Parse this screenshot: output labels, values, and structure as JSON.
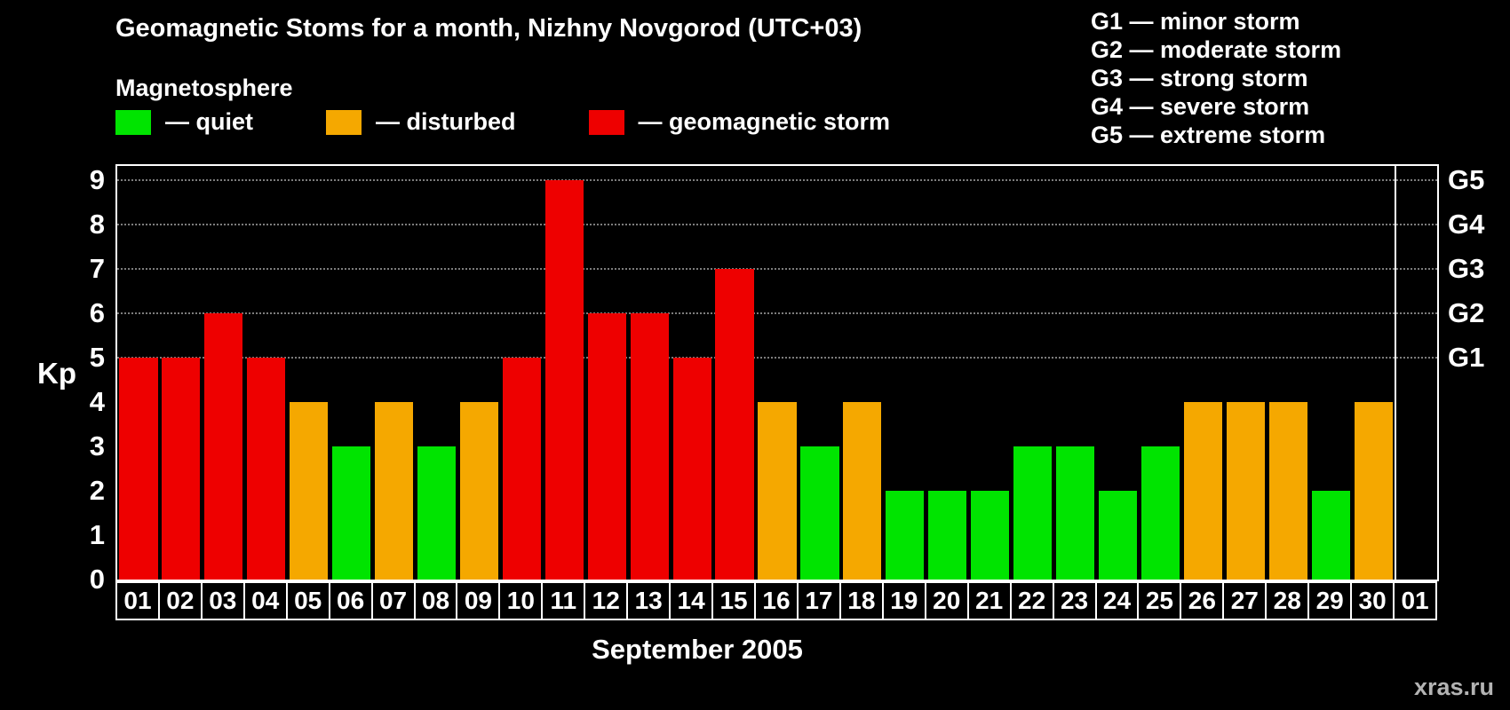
{
  "title": "Geomagnetic Stoms for a month, Nizhny Novgorod (UTC+03)",
  "legend": {
    "heading": "Magnetosphere",
    "items": [
      {
        "label": "— quiet",
        "color": "#00e400"
      },
      {
        "label": "— disturbed",
        "color": "#f5a800"
      },
      {
        "label": "— geomagnetic storm",
        "color": "#ee0000"
      }
    ]
  },
  "g_legend": [
    "G1 — minor storm",
    "G2 — moderate storm",
    "G3 — strong storm",
    "G4 — severe storm",
    "G5 — extreme storm"
  ],
  "month_label": "September 2005",
  "watermark": "xras.ru",
  "chart_data": {
    "type": "bar",
    "title": "Geomagnetic Stoms for a month, Nizhny Novgorod (UTC+03)",
    "xlabel": "September 2005",
    "ylabel": "Kp",
    "ylim": [
      0,
      9
    ],
    "y_ticks": [
      0,
      1,
      2,
      3,
      4,
      5,
      6,
      7,
      8,
      9
    ],
    "categories": [
      "01",
      "02",
      "03",
      "04",
      "05",
      "06",
      "07",
      "08",
      "09",
      "10",
      "11",
      "12",
      "13",
      "14",
      "15",
      "16",
      "17",
      "18",
      "19",
      "20",
      "21",
      "22",
      "23",
      "24",
      "25",
      "26",
      "27",
      "28",
      "29",
      "30",
      "01"
    ],
    "values": [
      5,
      5,
      6,
      5,
      4,
      3,
      4,
      3,
      4,
      5,
      9,
      6,
      6,
      5,
      7,
      4,
      3,
      4,
      2,
      2,
      2,
      3,
      3,
      2,
      3,
      4,
      4,
      4,
      2,
      4,
      null
    ],
    "colors": {
      "quiet": "#00e400",
      "disturbed": "#f5a800",
      "storm": "#ee0000"
    },
    "thresholds": {
      "quiet_max": 3,
      "disturbed_max": 4
    },
    "grid_levels": [
      5,
      6,
      7,
      8,
      9
    ],
    "right_axis": [
      {
        "label": "G1",
        "value": 5
      },
      {
        "label": "G2",
        "value": 6
      },
      {
        "label": "G3",
        "value": 7
      },
      {
        "label": "G4",
        "value": 8
      },
      {
        "label": "G5",
        "value": 9
      }
    ],
    "separator_slot": 30,
    "legend_position": "top",
    "grid": "dotted-horizontal"
  }
}
